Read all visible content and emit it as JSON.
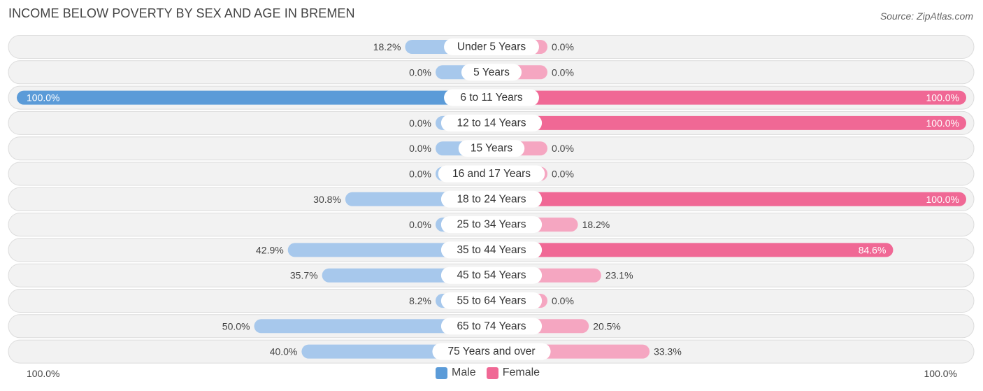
{
  "header": {
    "title": "INCOME BELOW POVERTY BY SEX AND AGE IN BREMEN",
    "source": "Source: ZipAtlas.com"
  },
  "colors": {
    "male_strong": "#5b9bd8",
    "male_light": "#a7c8ec",
    "female_strong": "#f06895",
    "female_light": "#f5a6c1",
    "track": "#f2f2f2",
    "track_border": "#dcdcdc"
  },
  "axis": {
    "left_label": "100.0%",
    "right_label": "100.0%"
  },
  "legend": [
    {
      "label": "Male",
      "color": "#5b9bd8"
    },
    {
      "label": "Female",
      "color": "#f06895"
    }
  ],
  "chart_data": {
    "type": "bar",
    "orientation": "horizontal-diverging",
    "title": "INCOME BELOW POVERTY BY SEX AND AGE IN BREMEN",
    "categories": [
      "Under 5 Years",
      "5 Years",
      "6 to 11 Years",
      "12 to 14 Years",
      "15 Years",
      "16 and 17 Years",
      "18 to 24 Years",
      "25 to 34 Years",
      "35 to 44 Years",
      "45 to 54 Years",
      "55 to 64 Years",
      "65 to 74 Years",
      "75 Years and over"
    ],
    "series": [
      {
        "name": "Male",
        "values": [
          18.2,
          0.0,
          100.0,
          0.0,
          0.0,
          0.0,
          30.8,
          0.0,
          42.9,
          35.7,
          8.2,
          50.0,
          40.0
        ],
        "labels": [
          "18.2%",
          "0.0%",
          "100.0%",
          "0.0%",
          "0.0%",
          "0.0%",
          "30.8%",
          "0.0%",
          "42.9%",
          "35.7%",
          "8.2%",
          "50.0%",
          "40.0%"
        ]
      },
      {
        "name": "Female",
        "values": [
          0.0,
          0.0,
          100.0,
          100.0,
          0.0,
          0.0,
          100.0,
          18.2,
          84.6,
          23.1,
          0.0,
          20.5,
          33.3
        ],
        "labels": [
          "0.0%",
          "0.0%",
          "100.0%",
          "100.0%",
          "0.0%",
          "0.0%",
          "100.0%",
          "18.2%",
          "84.6%",
          "23.1%",
          "0.0%",
          "20.5%",
          "33.3%"
        ]
      }
    ],
    "xlim": [
      0,
      100
    ],
    "xlabel_left": "100.0%",
    "xlabel_right": "100.0%"
  }
}
